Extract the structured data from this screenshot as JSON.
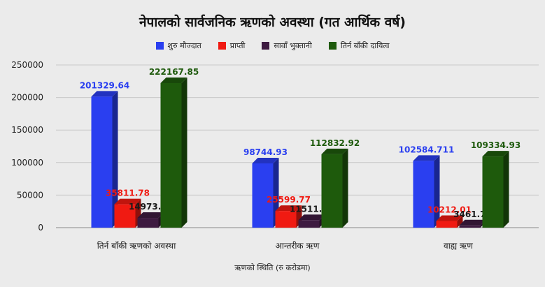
{
  "chart_data": {
    "type": "bar",
    "title": "नेपालको सार्वजनिक ऋणको अवस्था (गत आर्थिक वर्ष)",
    "xlabel": "ऋणको स्थिति (रु करोडमा)",
    "ylabel": "",
    "ylim": [
      0,
      250000
    ],
    "yticks": [
      0,
      50000,
      100000,
      150000,
      200000,
      250000
    ],
    "grid": true,
    "legend_position": "top",
    "categories": [
      "तिर्न बाँकी ऋणको अवस्था",
      "आन्तरीक ऋण",
      "वाह्य ऋण"
    ],
    "series": [
      {
        "name": "शुरु मौज्दात",
        "color": "#2a3ff0",
        "values": [
          201329.64,
          98744.93,
          102584.711
        ],
        "labels": [
          "201329.64",
          "98744.93",
          "102584.711"
        ]
      },
      {
        "name": "प्राप्ती",
        "color": "#f01a12",
        "values": [
          35811.78,
          25599.77,
          10212.01
        ],
        "labels": [
          "35811.78",
          "25599.77",
          "10212.01"
        ]
      },
      {
        "name": "सावाँ भुक्तानी",
        "color": "#3d1a40",
        "values": [
          14973.57,
          11511.78,
          3461.79
        ],
        "labels": [
          "14973.57",
          "11511.78",
          "3461.79"
        ]
      },
      {
        "name": "तिर्न बाँकी दायित्व",
        "color": "#1e5a0c",
        "values": [
          222167.85,
          112832.92,
          109334.93
        ],
        "labels": [
          "222167.85",
          "112832.92",
          "109334.93"
        ]
      }
    ]
  }
}
